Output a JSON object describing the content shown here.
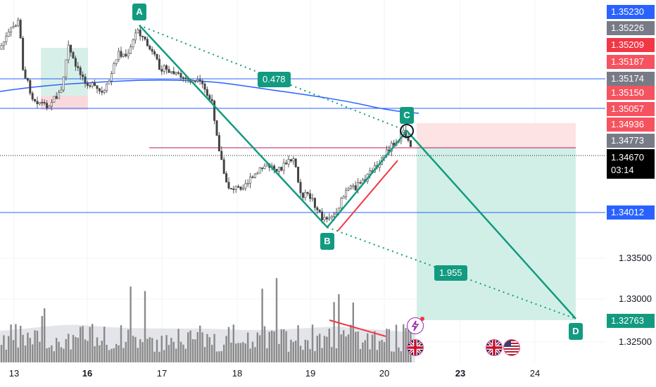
{
  "price_axis": {
    "labels": [
      {
        "text": "1.35230",
        "color": "#2962ff"
      },
      {
        "text": "1.35226",
        "color": "#787b86"
      },
      {
        "text": "1.35209",
        "color": "#f23645"
      },
      {
        "text": "1.35187",
        "color": "#f7525f"
      },
      {
        "text": "1.35174",
        "color": "#787b86"
      },
      {
        "text": "1.35150",
        "color": "#f7525f"
      },
      {
        "text": "1.35057",
        "color": "#f7525f"
      },
      {
        "text": "1.34936",
        "color": "#f7525f"
      },
      {
        "text": "1.34773",
        "color": "#787b86"
      },
      {
        "text": "1.34670",
        "color": "#000000"
      },
      {
        "text": "1.34012",
        "color": "#2962ff"
      },
      {
        "text": "1.32763",
        "color": "#129b80"
      }
    ],
    "countdown": "03:14",
    "ticks": [
      "1.33500",
      "1.33000",
      "1.32500"
    ]
  },
  "time_axis": {
    "dates": [
      {
        "text": "13",
        "bold": false
      },
      {
        "text": "16",
        "bold": true
      },
      {
        "text": "17",
        "bold": false
      },
      {
        "text": "18",
        "bold": false
      },
      {
        "text": "19",
        "bold": false
      },
      {
        "text": "20",
        "bold": false
      },
      {
        "text": "23",
        "bold": true
      },
      {
        "text": "24",
        "bold": false
      }
    ]
  },
  "pattern": {
    "points": [
      "A",
      "B",
      "C",
      "D"
    ],
    "ratios": [
      "0.478",
      "1.955"
    ],
    "color": "#129b80"
  },
  "events": {
    "icons": [
      "lightning-icon",
      "uk-flag-icon",
      "uk-flag-icon",
      "us-flag-icon"
    ]
  },
  "chart_data": {
    "type": "candlestick",
    "symbol_context": "GBP/USD style chart",
    "y_range": [
      1.3225,
      1.3532
    ],
    "horizontal_levels": [
      1.35174,
      1.35057,
      1.34012
    ],
    "current_price": 1.3467,
    "target_price": 1.32763,
    "harmonic_points": {
      "A": 1.3524,
      "B": 1.3395,
      "C": 1.3489,
      "D": 1.3276
    },
    "ratios": [
      0.478,
      1.955
    ]
  }
}
